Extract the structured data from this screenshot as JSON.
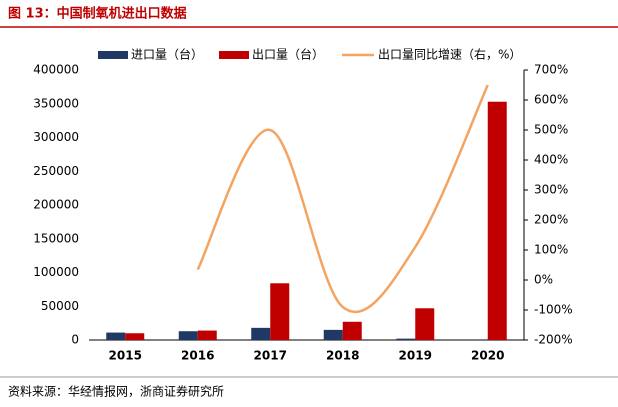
{
  "header": {
    "title": "图 13：中国制氧机进出口数据"
  },
  "chart_data": {
    "type": "bar-line",
    "categories": [
      "2015",
      "2016",
      "2017",
      "2018",
      "2019",
      "2020"
    ],
    "series": [
      {
        "name": "进口量（台）",
        "color": "#1f3864",
        "type": "bar",
        "values": [
          11000,
          13000,
          18000,
          15000,
          2000,
          null
        ]
      },
      {
        "name": "出口量（台）",
        "color": "#c00000",
        "type": "bar",
        "values": [
          10000,
          14000,
          84000,
          27000,
          47000,
          353000
        ]
      },
      {
        "name": "出口量同比增速（右，%）",
        "color": "#f4a460",
        "type": "line",
        "axis": "y2",
        "smooth": true,
        "values": [
          null,
          35,
          500,
          -90,
          110,
          650
        ]
      }
    ],
    "ylim": [
      0,
      400000
    ],
    "yticks": [
      0,
      50000,
      100000,
      150000,
      200000,
      250000,
      300000,
      350000,
      400000
    ],
    "y2lim": [
      -200,
      700
    ],
    "y2ticks": [
      {
        "value": -200,
        "label": "-200%"
      },
      {
        "value": -100,
        "label": "-100%"
      },
      {
        "value": 0,
        "label": "0%"
      },
      {
        "value": 100,
        "label": "100%"
      },
      {
        "value": 200,
        "label": "200%"
      },
      {
        "value": 300,
        "label": "300%"
      },
      {
        "value": 400,
        "label": "400%"
      },
      {
        "value": 500,
        "label": "500%"
      },
      {
        "value": 600,
        "label": "600%"
      },
      {
        "value": 700,
        "label": "700%"
      }
    ],
    "legend": "top"
  },
  "footer": {
    "source": "资料来源：华经情报网，浙商证券研究所"
  }
}
